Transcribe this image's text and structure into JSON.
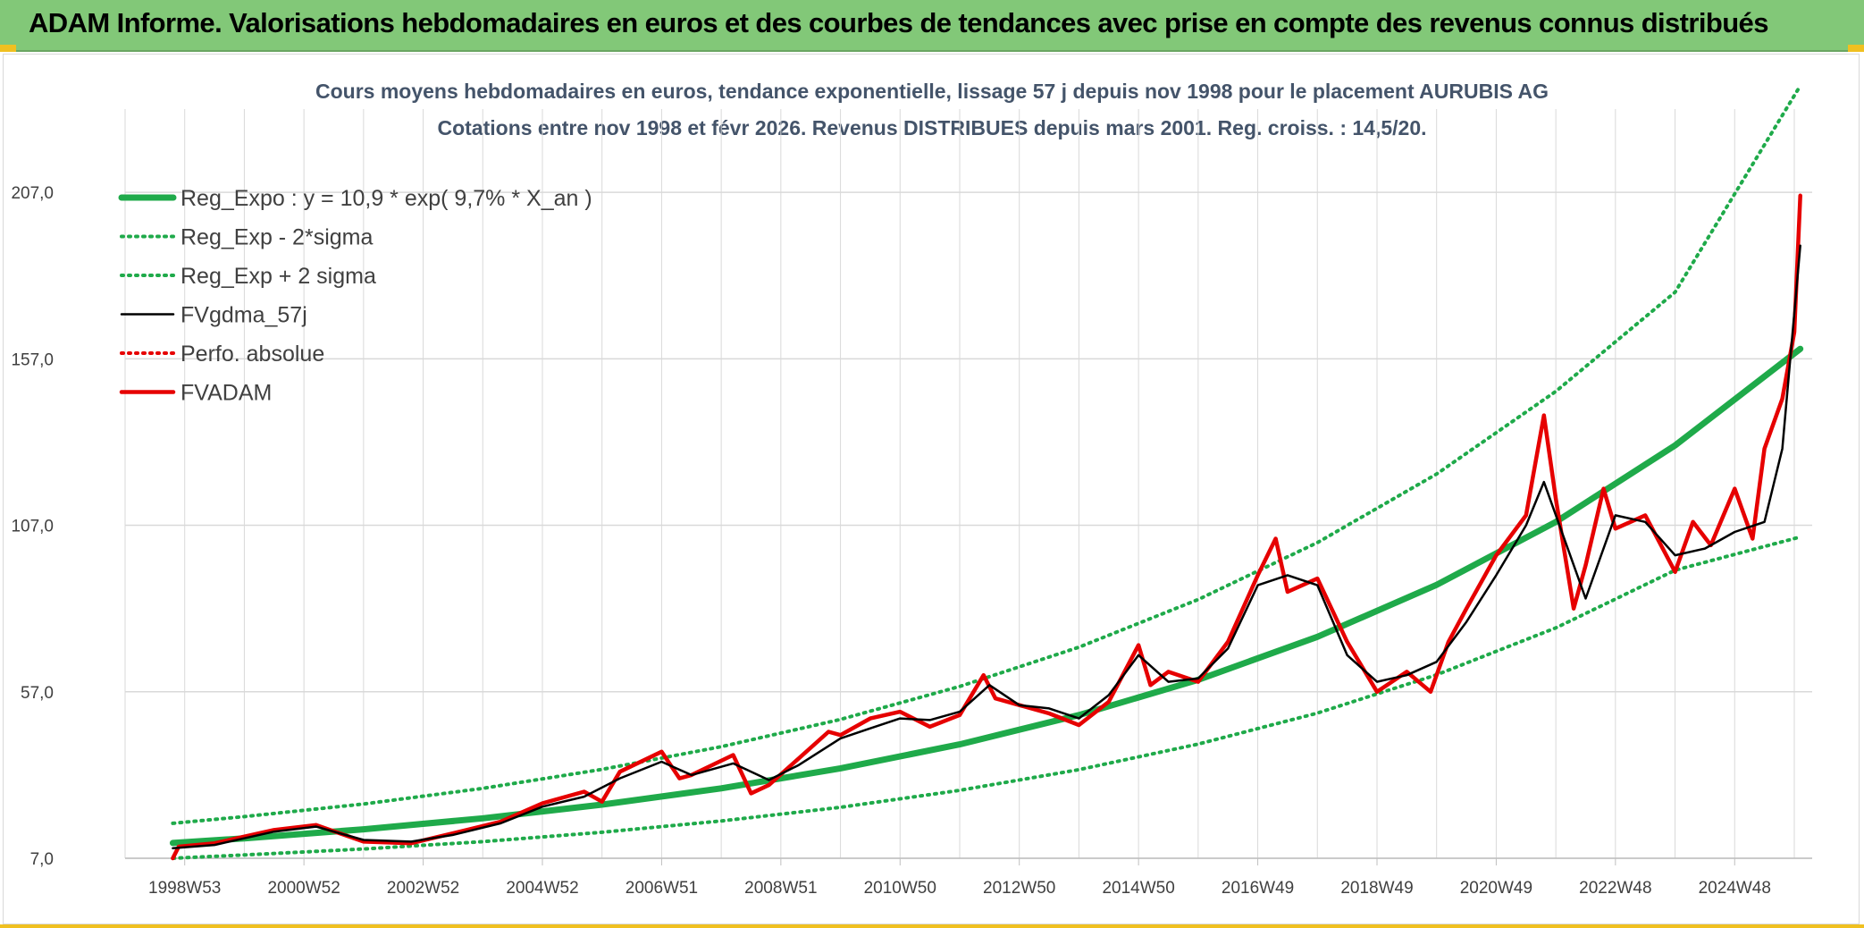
{
  "banner": {
    "title": "ADAM Informe. Valorisations hebdomadaires en euros et des courbes de tendances avec prise en compte des revenus connus distribués"
  },
  "colors": {
    "banner_bg": "#82c878",
    "trend": "#1faa4a",
    "fvgdma": "#000000",
    "fvadam": "#e60000",
    "perfo": "#e60000",
    "grid": "#d9d9d9",
    "text": "#44546a"
  },
  "chart_data": {
    "type": "line",
    "title": "Cours moyens hebdomadaires en euros, tendance exponentielle, lissage 57 j depuis nov 1998 pour le placement AURUBIS AG",
    "subtitle": "Cotations entre nov 1998 et févr 2026. Revenus DISTRIBUES depuis mars 2001. Reg. croiss. : 14,5/20.",
    "xlabel": "",
    "ylabel": "",
    "grid": true,
    "legend_position": "top-left",
    "y_ticks": [
      "7,0",
      "57,0",
      "107,0",
      "157,0",
      "207,0"
    ],
    "y_tick_values": [
      7,
      57,
      107,
      157,
      207
    ],
    "ylim": [
      7,
      232
    ],
    "x_ticks": [
      "1998W53",
      "2000W52",
      "2002W52",
      "2004W52",
      "2006W51",
      "2008W51",
      "2010W50",
      "2012W50",
      "2014W50",
      "2016W49",
      "2018W49",
      "2020W49",
      "2022W48",
      "2024W48"
    ],
    "x_tick_years": [
      1999.0,
      2001.0,
      2003.0,
      2005.0,
      2007.0,
      2009.0,
      2011.0,
      2013.0,
      2015.0,
      2017.0,
      2019.0,
      2021.0,
      2023.0,
      2025.0
    ],
    "xlim": [
      1998.0,
      2026.3
    ],
    "series": [
      {
        "name": "Reg_Expo : y = 10,9 * exp( 9,7% *  X_an )",
        "style": "solid-thick",
        "color": "#1faa4a",
        "x": [
          1998.8,
          2000,
          2002,
          2004,
          2006,
          2008,
          2010,
          2012,
          2014,
          2016,
          2018,
          2020,
          2022,
          2024,
          2026.1
        ],
        "y": [
          11.6,
          13.0,
          15.7,
          19.0,
          23.1,
          28.0,
          34.0,
          41.2,
          50.0,
          60.6,
          73.5,
          89.1,
          108.0,
          131.0,
          160.0
        ]
      },
      {
        "name": "Reg_Exp - 2*sigma",
        "style": "dotted",
        "color": "#1faa4a",
        "x": [
          1998.8,
          2000,
          2002,
          2004,
          2006,
          2008,
          2010,
          2012,
          2014,
          2016,
          2018,
          2020,
          2022,
          2024,
          2026.1
        ],
        "y": [
          7.0,
          8.0,
          9.8,
          12.0,
          14.8,
          18.2,
          22.3,
          27.4,
          33.6,
          41.3,
          50.6,
          62.1,
          76.2,
          93.5,
          103.5
        ]
      },
      {
        "name": "Reg_Exp + 2 sigma",
        "style": "dotted",
        "color": "#1faa4a",
        "x": [
          1998.8,
          2000,
          2002,
          2004,
          2006,
          2008,
          2010,
          2012,
          2014,
          2016,
          2018,
          2020,
          2022,
          2024,
          2026.1
        ],
        "y": [
          17.5,
          19.5,
          23.3,
          28.0,
          33.7,
          40.5,
          48.7,
          58.6,
          70.4,
          84.7,
          101.8,
          122.4,
          147.2,
          177.0,
          239.0
        ]
      },
      {
        "name": "FVgdma_57j",
        "style": "solid",
        "color": "#000000",
        "x": [
          1998.8,
          1999.5,
          2000.5,
          2001.2,
          2002.0,
          2002.8,
          2003.5,
          2004.3,
          2005.0,
          2005.7,
          2006.3,
          2007.0,
          2007.5,
          2008.2,
          2008.8,
          2009.3,
          2010.0,
          2010.5,
          2011.0,
          2011.5,
          2012.0,
          2012.5,
          2013.0,
          2013.5,
          2014.0,
          2014.5,
          2015.0,
          2015.5,
          2016.0,
          2016.5,
          2017.0,
          2017.5,
          2018.0,
          2018.5,
          2019.0,
          2019.5,
          2020.0,
          2020.5,
          2021.0,
          2021.5,
          2021.8,
          2022.2,
          2022.5,
          2023.0,
          2023.5,
          2024.0,
          2024.5,
          2025.0,
          2025.5,
          2025.8,
          2026.1
        ],
        "y": [
          10.0,
          11.0,
          15.0,
          16.5,
          12.5,
          12.0,
          14.0,
          17.5,
          22.5,
          25.5,
          31.0,
          36.0,
          32.0,
          35.5,
          30.5,
          35.0,
          43.0,
          46.0,
          49.0,
          48.5,
          51.0,
          59.0,
          53.0,
          52.0,
          49.0,
          56.0,
          68.0,
          60.0,
          61.0,
          70.0,
          89.0,
          92.0,
          89.0,
          68.0,
          60.0,
          62.0,
          66.0,
          78.0,
          92.0,
          107.0,
          120.0,
          100.0,
          85.0,
          110.0,
          108.0,
          98.0,
          100.0,
          105.0,
          108.0,
          130.0,
          191.0
        ]
      },
      {
        "name": "Perfo. absolue",
        "style": "dotted",
        "color": "#e60000",
        "x": [],
        "y": []
      },
      {
        "name": "FVADAM",
        "style": "solid-thick",
        "color": "#e60000",
        "x": [
          1998.8,
          1998.9,
          1999.5,
          2000.5,
          2001.2,
          2002.0,
          2002.8,
          2003.5,
          2004.3,
          2005.0,
          2005.7,
          2006.0,
          2006.3,
          2007.0,
          2007.3,
          2007.5,
          2008.2,
          2008.5,
          2008.8,
          2009.3,
          2009.8,
          2010.0,
          2010.5,
          2011.0,
          2011.5,
          2012.0,
          2012.4,
          2012.6,
          2013.0,
          2013.5,
          2014.0,
          2014.5,
          2015.0,
          2015.2,
          2015.5,
          2016.0,
          2016.5,
          2017.0,
          2017.3,
          2017.5,
          2018.0,
          2018.5,
          2019.0,
          2019.5,
          2019.9,
          2020.2,
          2020.5,
          2021.0,
          2021.5,
          2021.8,
          2022.0,
          2022.3,
          2022.5,
          2022.8,
          2023.0,
          2023.5,
          2024.0,
          2024.3,
          2024.6,
          2025.0,
          2025.3,
          2025.5,
          2025.8,
          2026.0,
          2026.1
        ],
        "y": [
          7.0,
          10.5,
          11.5,
          15.5,
          17.0,
          12.0,
          11.5,
          14.5,
          18.0,
          23.5,
          27.0,
          24.0,
          33.0,
          39.0,
          31.0,
          32.0,
          38.0,
          26.5,
          29.0,
          37.0,
          45.0,
          44.0,
          49.0,
          51.0,
          46.5,
          50.0,
          62.0,
          55.0,
          53.0,
          50.5,
          47.0,
          54.0,
          71.0,
          59.0,
          63.0,
          60.0,
          72.0,
          92.0,
          103.0,
          87.0,
          91.0,
          72.0,
          57.0,
          63.0,
          57.0,
          72.0,
          82.0,
          98.0,
          110.0,
          140.0,
          115.0,
          82.0,
          95.0,
          118.0,
          106.0,
          110.0,
          93.0,
          108.0,
          101.0,
          118.0,
          103.0,
          130.0,
          145.0,
          165.0,
          206.0
        ]
      }
    ]
  }
}
